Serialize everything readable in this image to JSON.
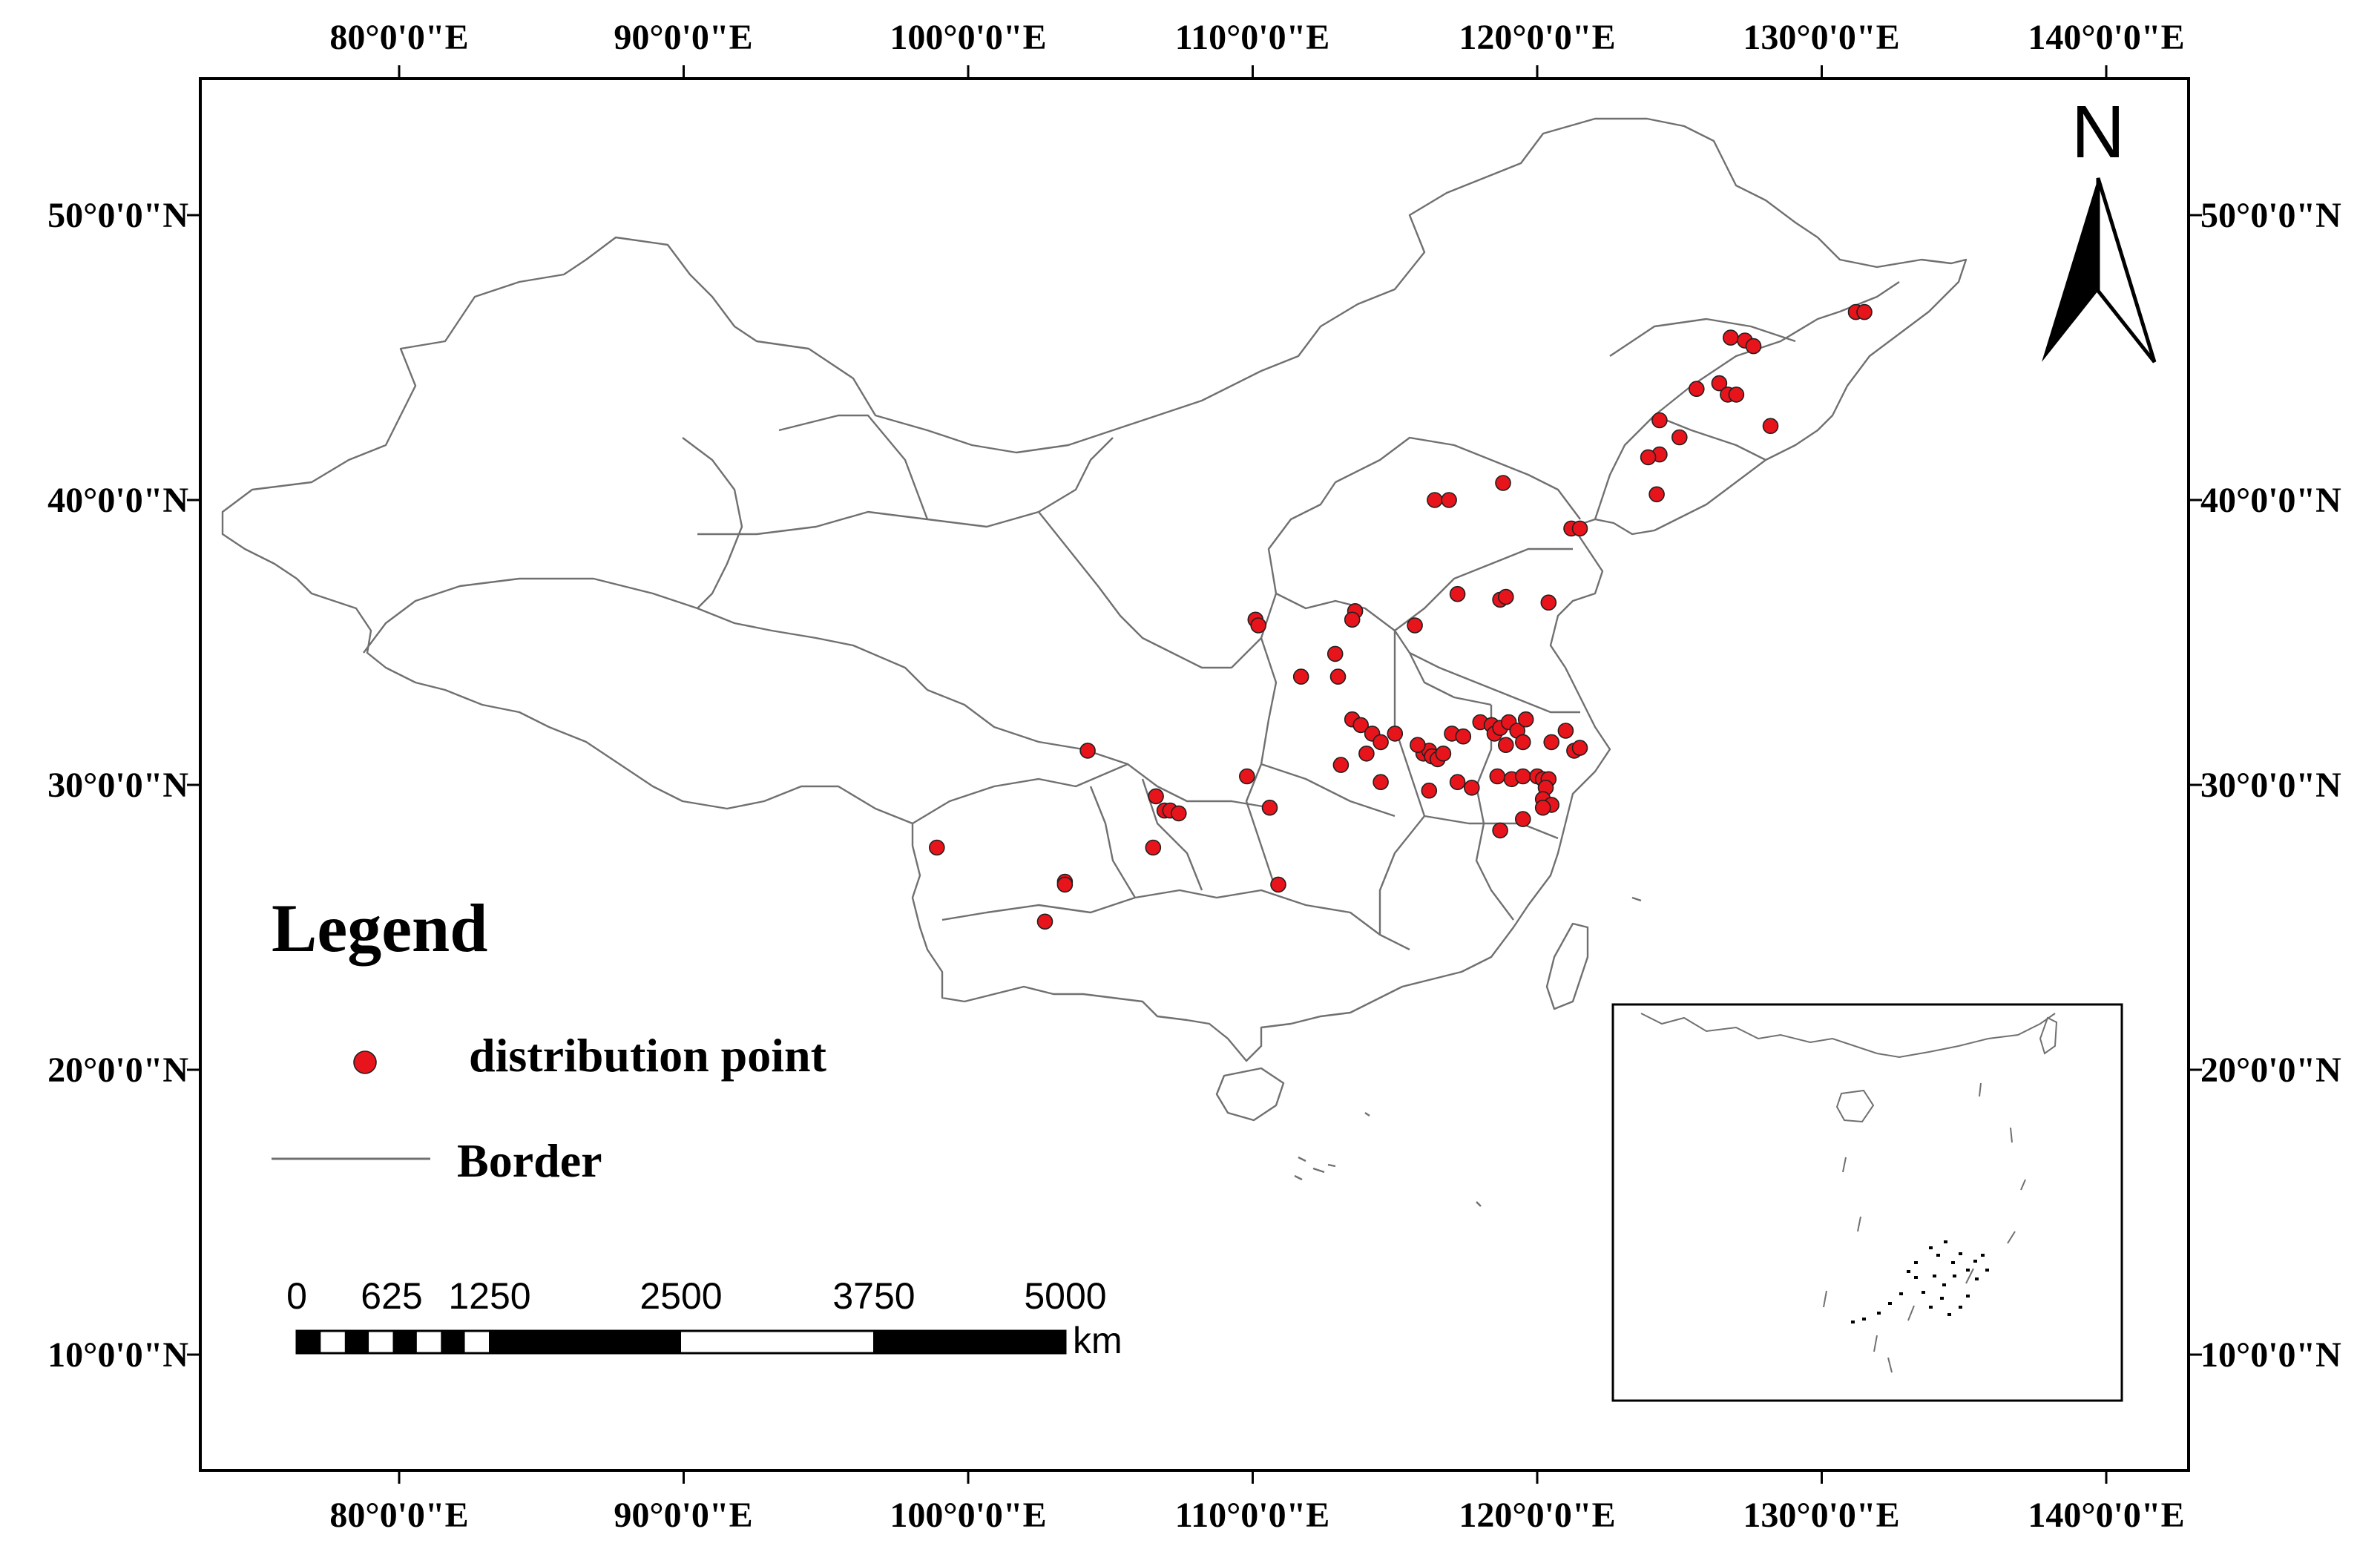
{
  "map": {
    "axis_ticks_top": [
      "80°0'0\"E",
      "90°0'0\"E",
      "100°0'0\"E",
      "110°0'0\"E",
      "120°0'0\"E",
      "130°0'0\"E",
      "140°0'0\"E"
    ],
    "axis_ticks_bottom": [
      "80°0'0\"E",
      "90°0'0\"E",
      "100°0'0\"E",
      "110°0'0\"E",
      "120°0'0\"E",
      "130°0'0\"E",
      "140°0'0\"E"
    ],
    "axis_ticks_left": [
      "50°0'0\"N",
      "40°0'0\"N",
      "30°0'0\"N",
      "20°0'0\"N",
      "10°0'0\"N"
    ],
    "axis_ticks_right": [
      "50°0'0\"N",
      "40°0'0\"N",
      "30°0'0\"N",
      "20°0'0\"N",
      "10°0'0\"N"
    ],
    "lon_ticks": [
      80,
      90,
      100,
      110,
      120,
      130,
      140
    ],
    "lat_ticks": [
      50,
      40,
      30,
      20,
      10
    ],
    "lon_range": [
      73,
      143
    ],
    "lat_range": [
      5.5,
      55
    ],
    "north_label": "N",
    "legend": {
      "title": "Legend",
      "items": [
        {
          "label": "distribution point",
          "symbol": "red-dot"
        },
        {
          "label": "Border",
          "symbol": "gray-line"
        }
      ]
    },
    "scale_bar": {
      "labels": [
        "0",
        "625",
        "1250",
        "2500",
        "3750",
        "5000"
      ],
      "values": [
        0,
        625,
        1250,
        2500,
        3750,
        5000
      ],
      "unit": "km"
    },
    "colors": {
      "point": "#e8141c",
      "border": "#707070",
      "frame": "#000000"
    },
    "points": [
      [
        131.2,
        46.6
      ],
      [
        131.5,
        46.6
      ],
      [
        126.8,
        45.7
      ],
      [
        127.3,
        45.6
      ],
      [
        127.6,
        45.4
      ],
      [
        126.4,
        44.1
      ],
      [
        126.7,
        43.7
      ],
      [
        127.0,
        43.7
      ],
      [
        125.6,
        43.9
      ],
      [
        128.2,
        42.6
      ],
      [
        124.3,
        42.8
      ],
      [
        125.0,
        42.2
      ],
      [
        124.3,
        41.6
      ],
      [
        123.9,
        41.5
      ],
      [
        124.2,
        40.2
      ],
      [
        121.2,
        39.0
      ],
      [
        121.5,
        39.0
      ],
      [
        118.8,
        40.6
      ],
      [
        116.4,
        40.0
      ],
      [
        116.9,
        40.0
      ],
      [
        117.2,
        36.7
      ],
      [
        118.7,
        36.5
      ],
      [
        118.9,
        36.6
      ],
      [
        120.4,
        36.4
      ],
      [
        110.1,
        35.8
      ],
      [
        110.2,
        35.6
      ],
      [
        113.6,
        36.1
      ],
      [
        113.5,
        35.8
      ],
      [
        115.7,
        35.6
      ],
      [
        112.9,
        34.6
      ],
      [
        111.7,
        33.8
      ],
      [
        113.0,
        33.8
      ],
      [
        104.2,
        31.2
      ],
      [
        113.5,
        32.3
      ],
      [
        113.8,
        32.1
      ],
      [
        114.2,
        31.8
      ],
      [
        114.5,
        31.5
      ],
      [
        115.0,
        31.8
      ],
      [
        114.0,
        31.1
      ],
      [
        116.0,
        31.1
      ],
      [
        116.2,
        31.2
      ],
      [
        116.3,
        31.0
      ],
      [
        116.5,
        30.9
      ],
      [
        115.8,
        31.4
      ],
      [
        116.7,
        31.1
      ],
      [
        117.0,
        31.8
      ],
      [
        117.4,
        31.7
      ],
      [
        118.0,
        32.2
      ],
      [
        118.4,
        32.1
      ],
      [
        118.5,
        31.8
      ],
      [
        118.7,
        32.0
      ],
      [
        119.0,
        32.2
      ],
      [
        119.3,
        31.9
      ],
      [
        119.6,
        32.3
      ],
      [
        118.9,
        31.4
      ],
      [
        119.5,
        31.5
      ],
      [
        120.5,
        31.5
      ],
      [
        121.0,
        31.9
      ],
      [
        121.3,
        31.2
      ],
      [
        121.5,
        31.3
      ],
      [
        113.1,
        30.7
      ],
      [
        114.5,
        30.1
      ],
      [
        116.2,
        29.8
      ],
      [
        117.2,
        30.1
      ],
      [
        117.7,
        29.9
      ],
      [
        118.6,
        30.3
      ],
      [
        119.1,
        30.2
      ],
      [
        119.5,
        30.3
      ],
      [
        120.0,
        30.3
      ],
      [
        120.2,
        30.2
      ],
      [
        120.4,
        30.2
      ],
      [
        120.3,
        29.9
      ],
      [
        120.2,
        29.5
      ],
      [
        120.5,
        29.3
      ],
      [
        120.2,
        29.2
      ],
      [
        119.5,
        28.8
      ],
      [
        118.7,
        28.4
      ],
      [
        109.8,
        30.3
      ],
      [
        106.6,
        29.6
      ],
      [
        106.9,
        29.1
      ],
      [
        107.1,
        29.1
      ],
      [
        107.4,
        29.0
      ],
      [
        106.5,
        27.8
      ],
      [
        110.6,
        29.2
      ],
      [
        110.9,
        26.5
      ],
      [
        103.4,
        26.6
      ],
      [
        103.4,
        26.5
      ],
      [
        102.7,
        25.2
      ],
      [
        98.9,
        27.8
      ]
    ],
    "inset": {}
  }
}
